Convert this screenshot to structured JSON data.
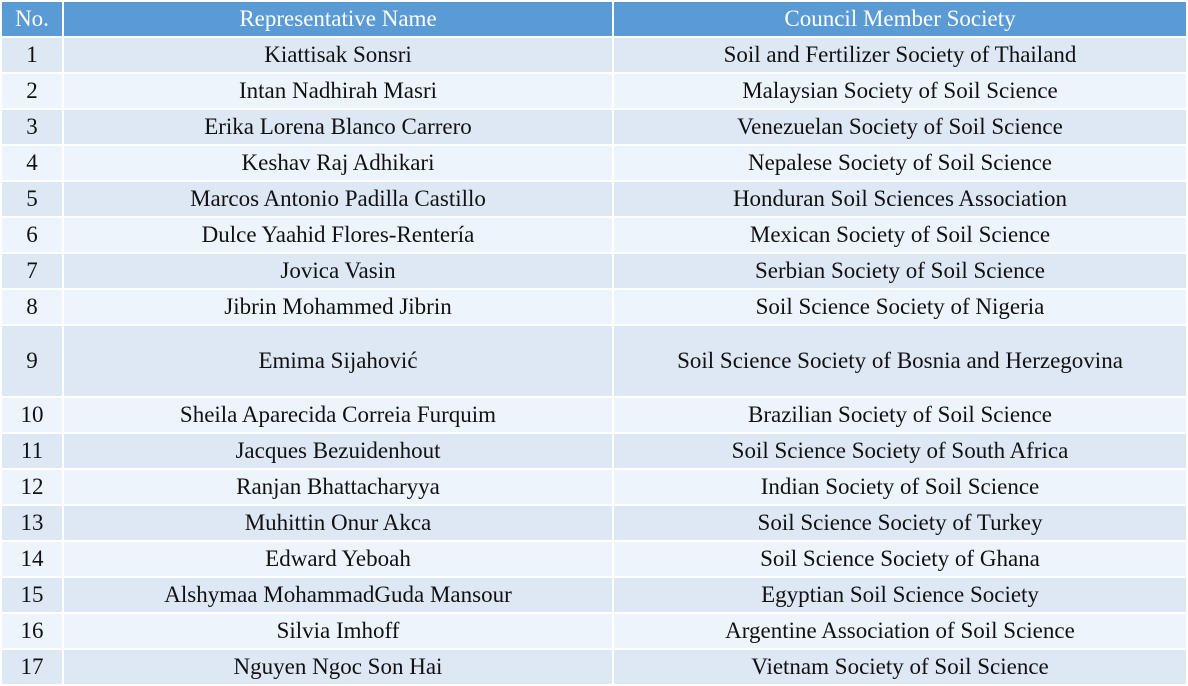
{
  "table": {
    "headers": [
      "No.",
      "Representative Name",
      "Council Member Society"
    ],
    "rows": [
      {
        "no": "1",
        "name": "Kiattisak  Sonsri",
        "society": "Soil and Fertilizer Society of Thailand"
      },
      {
        "no": "2",
        "name": "Intan Nadhirah Masri",
        "society": "Malaysian Society of Soil Science"
      },
      {
        "no": "3",
        "name": "Erika Lorena Blanco Carrero",
        "society": "Venezuelan Society of Soil Science"
      },
      {
        "no": "4",
        "name": "Keshav Raj Adhikari",
        "society": "Nepalese Society of Soil Science"
      },
      {
        "no": "5",
        "name": "Marcos Antonio Padilla Castillo",
        "society": "Honduran Soil Sciences Association"
      },
      {
        "no": "6",
        "name": "Dulce Yaahid Flores-Rentería",
        "society": "Mexican Society of Soil Science"
      },
      {
        "no": "7",
        "name": "Jovica Vasin",
        "society": "Serbian Society of Soil Science"
      },
      {
        "no": "8",
        "name": "Jibrin Mohammed Jibrin",
        "society": "Soil Science Society of Nigeria"
      },
      {
        "no": "9",
        "name": "Emima Sijahović",
        "society": "Soil Science Society of Bosnia and Herzegovina"
      },
      {
        "no": "10",
        "name": "Sheila Aparecida Correia Furquim",
        "society": "Brazilian Society of Soil Science"
      },
      {
        "no": "11",
        "name": "Jacques Bezuidenhout",
        "society": "Soil Science Society of South Africa"
      },
      {
        "no": "12",
        "name": "Ranjan Bhattacharyya",
        "society": "Indian Society of Soil Science"
      },
      {
        "no": "13",
        "name": "Muhittin Onur Akca",
        "society": "Soil Science Society of Turkey"
      },
      {
        "no": "14",
        "name": "Edward Yeboah",
        "society": "Soil Science Society of Ghana"
      },
      {
        "no": "15",
        "name": "Alshymaa MohammadGuda Mansour",
        "society": "Egyptian Soil Science Society"
      },
      {
        "no": "16",
        "name": "Silvia Imhoff",
        "society": "Argentine Association of Soil Science"
      },
      {
        "no": "17",
        "name": "Nguyen Ngoc Son Hai",
        "society": "Vietnam Society of Soil Science"
      }
    ]
  },
  "colors": {
    "header": "#5b9bd5",
    "row_odd": "#dde8f4",
    "row_even": "#edf4fb"
  }
}
